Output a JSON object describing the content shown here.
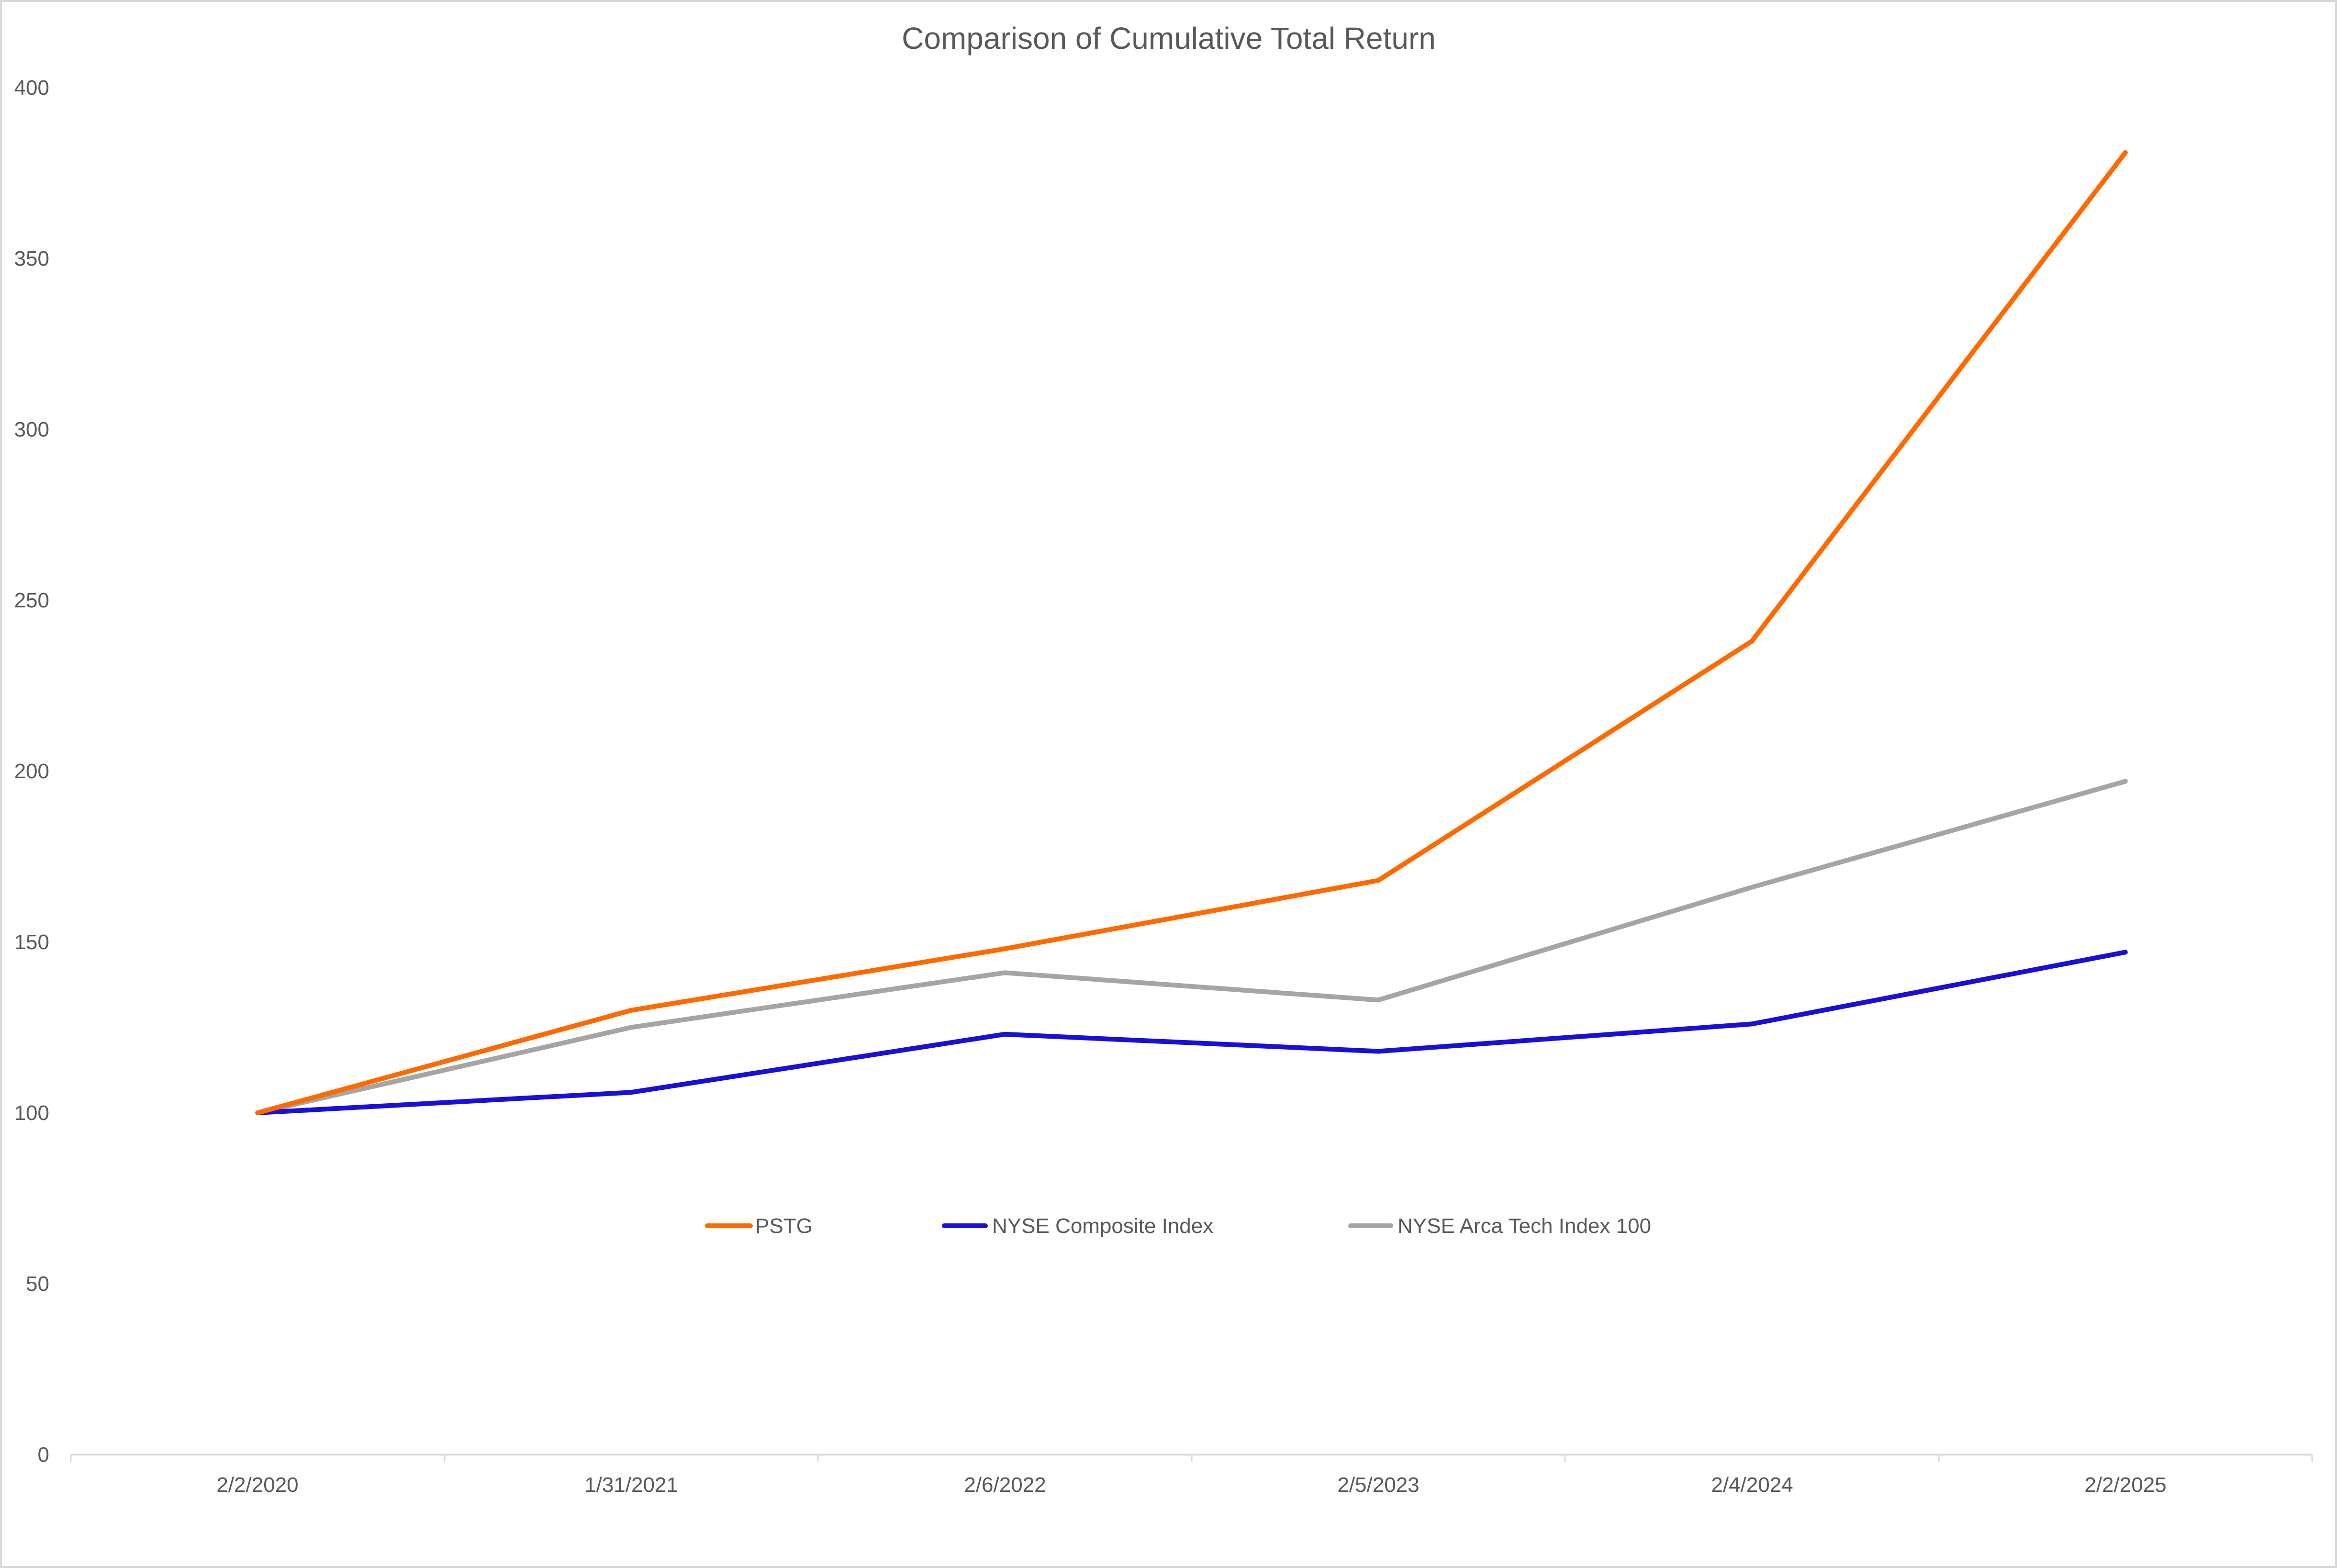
{
  "chart": {
    "title": "Comparison of Cumulative Total Return",
    "y_ticks": [
      "0",
      "50",
      "100",
      "150",
      "200",
      "250",
      "300",
      "350",
      "400"
    ],
    "x_labels": [
      "2/2/2020",
      "1/31/2021",
      "2/6/2022",
      "2/5/2023",
      "2/4/2024",
      "2/2/2025"
    ],
    "legend": [
      {
        "label": "PSTG",
        "color": "#ff6a00"
      },
      {
        "label": "NYSE Composite Index",
        "color": "#1a0fd8"
      },
      {
        "label": "NYSE Arca Tech Index 100",
        "color": "#a5a5a5"
      }
    ],
    "colors": {
      "text": "#595959",
      "axis": "#d9d9d9",
      "border": "#d9d9d9",
      "background": "#ffffff"
    }
  },
  "chart_data": {
    "type": "line",
    "title": "Comparison of Cumulative Total Return",
    "xlabel": "",
    "ylabel": "",
    "categories": [
      "2/2/2020",
      "1/31/2021",
      "2/6/2022",
      "2/5/2023",
      "2/4/2024",
      "2/2/2025"
    ],
    "series": [
      {
        "name": "PSTG",
        "color": "#ff6a00",
        "values": [
          100,
          130,
          148,
          168,
          238,
          381
        ]
      },
      {
        "name": "NYSE Composite Index",
        "color": "#1a0fd8",
        "values": [
          100,
          106,
          123,
          118,
          126,
          147
        ]
      },
      {
        "name": "NYSE Arca Tech Index 100",
        "color": "#a5a5a5",
        "values": [
          100,
          125,
          141,
          133,
          166,
          197
        ]
      }
    ],
    "ylim": [
      0,
      400
    ],
    "y_tick_step": 50,
    "grid": false,
    "legend_position": "inside-bottom-center"
  }
}
